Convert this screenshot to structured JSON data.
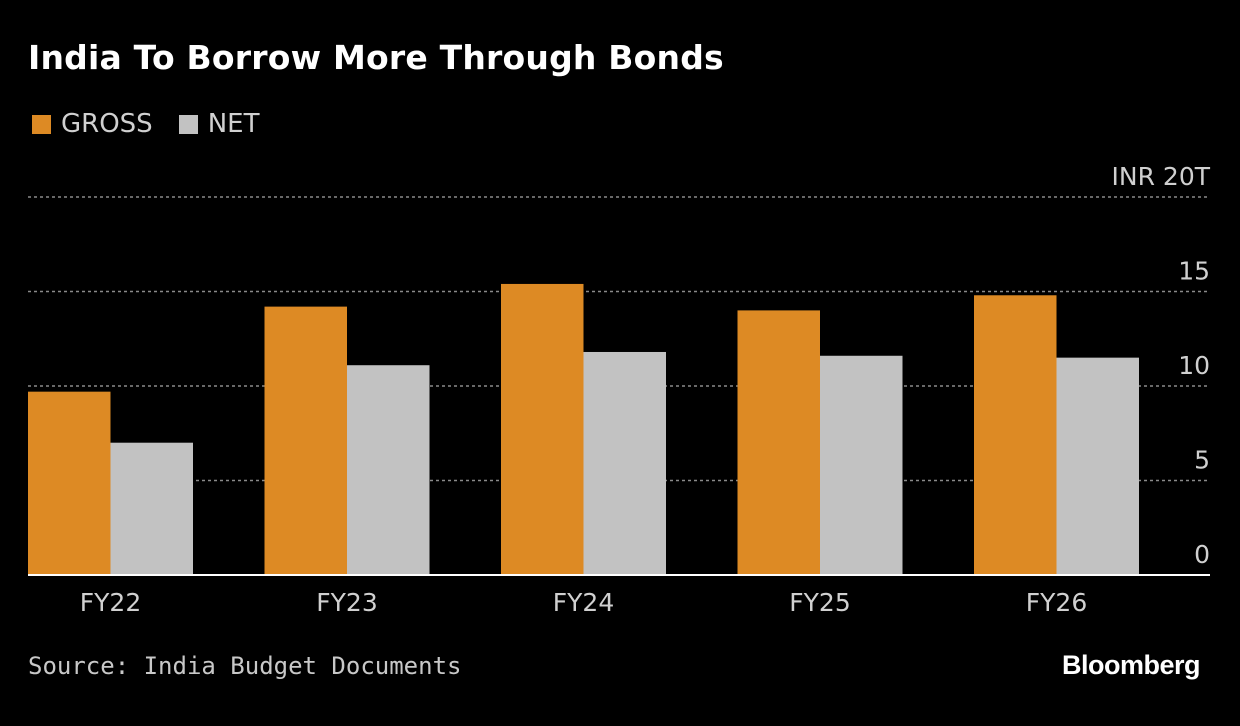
{
  "title": "India To Borrow More Through Bonds",
  "source": "Source: India Budget Documents",
  "logo": "Bloomberg",
  "colors": {
    "background": "#000000",
    "gross": "#dd8a24",
    "net": "#c2c2c2",
    "grid": "#8a8a8a",
    "text": "#d0d0d0"
  },
  "chart_data": {
    "type": "bar",
    "categories": [
      "FY22",
      "FY23",
      "FY24",
      "FY25",
      "FY26"
    ],
    "series": [
      {
        "name": "GROSS",
        "values": [
          9.7,
          14.2,
          15.4,
          14.0,
          14.8
        ]
      },
      {
        "name": "NET",
        "values": [
          7.0,
          11.1,
          11.8,
          11.6,
          11.5
        ]
      }
    ],
    "ylim": [
      0,
      20
    ],
    "yticks": [
      {
        "value": 0,
        "label": "0"
      },
      {
        "value": 5,
        "label": "5"
      },
      {
        "value": 10,
        "label": "10"
      },
      {
        "value": 15,
        "label": "15"
      },
      {
        "value": 20,
        "label": "INR 20T"
      }
    ],
    "grid": true,
    "legend_position": "top-left"
  }
}
